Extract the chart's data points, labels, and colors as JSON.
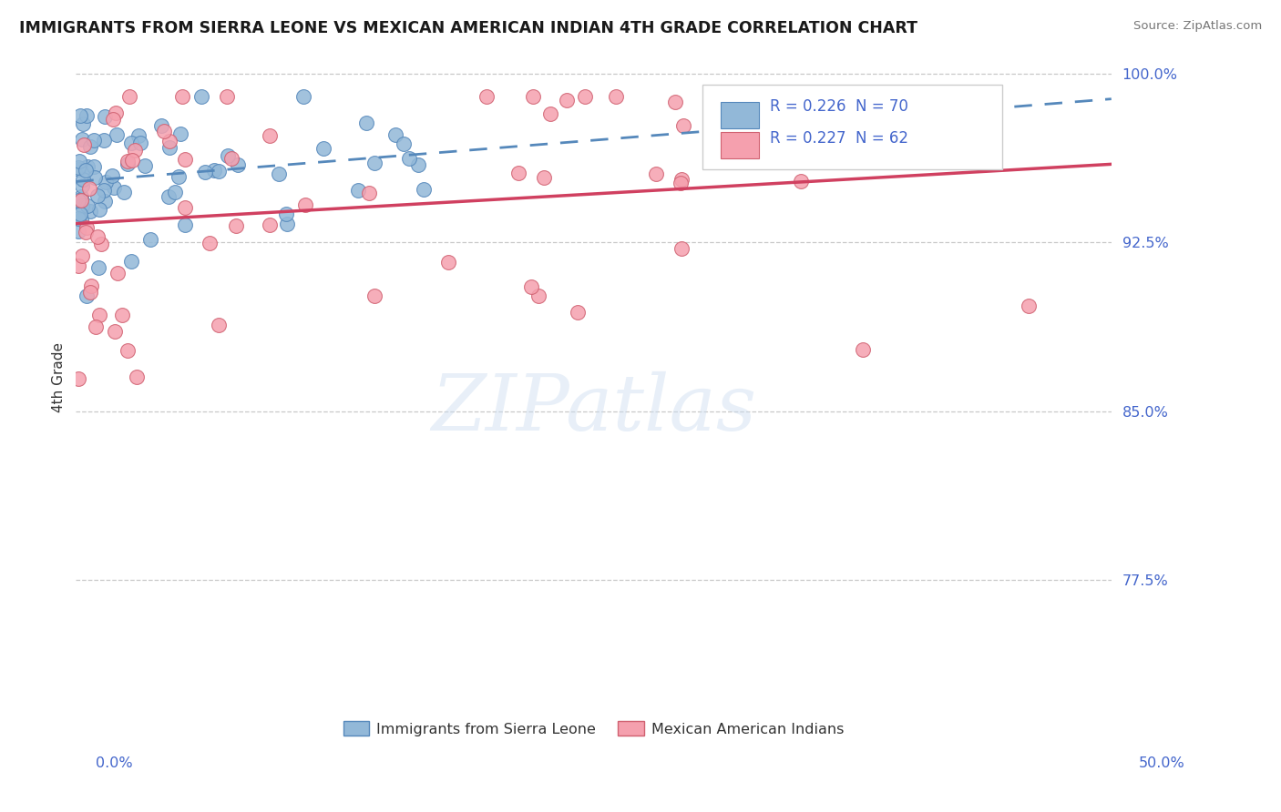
{
  "title": "IMMIGRANTS FROM SIERRA LEONE VS MEXICAN AMERICAN INDIAN 4TH GRADE CORRELATION CHART",
  "source": "Source: ZipAtlas.com",
  "ylabel": "4th Grade",
  "xlim": [
    0.0,
    0.5
  ],
  "ylim": [
    0.725,
    1.005
  ],
  "yticks": [
    0.775,
    0.85,
    0.925,
    1.0
  ],
  "ytick_labels": [
    "77.5%",
    "85.0%",
    "92.5%",
    "100.0%"
  ],
  "xlabel_start": "0.0%",
  "xlabel_end": "50.0%",
  "watermark": "ZIPatlas",
  "blue_color": "#92b8d8",
  "blue_edge": "#5588bb",
  "blue_line": "#5588bb",
  "pink_color": "#f5a0ae",
  "pink_edge": "#d06070",
  "pink_line": "#d04060",
  "tick_color": "#4466cc",
  "R_sl": "0.226",
  "N_sl": "70",
  "R_mex": "0.227",
  "N_mex": "62",
  "legend_label_sl": "Immigrants from Sierra Leone",
  "legend_label_mex": "Mexican American Indians",
  "grid_color": "#bbbbbb",
  "title_color": "#1a1a1a",
  "source_color": "#777777"
}
